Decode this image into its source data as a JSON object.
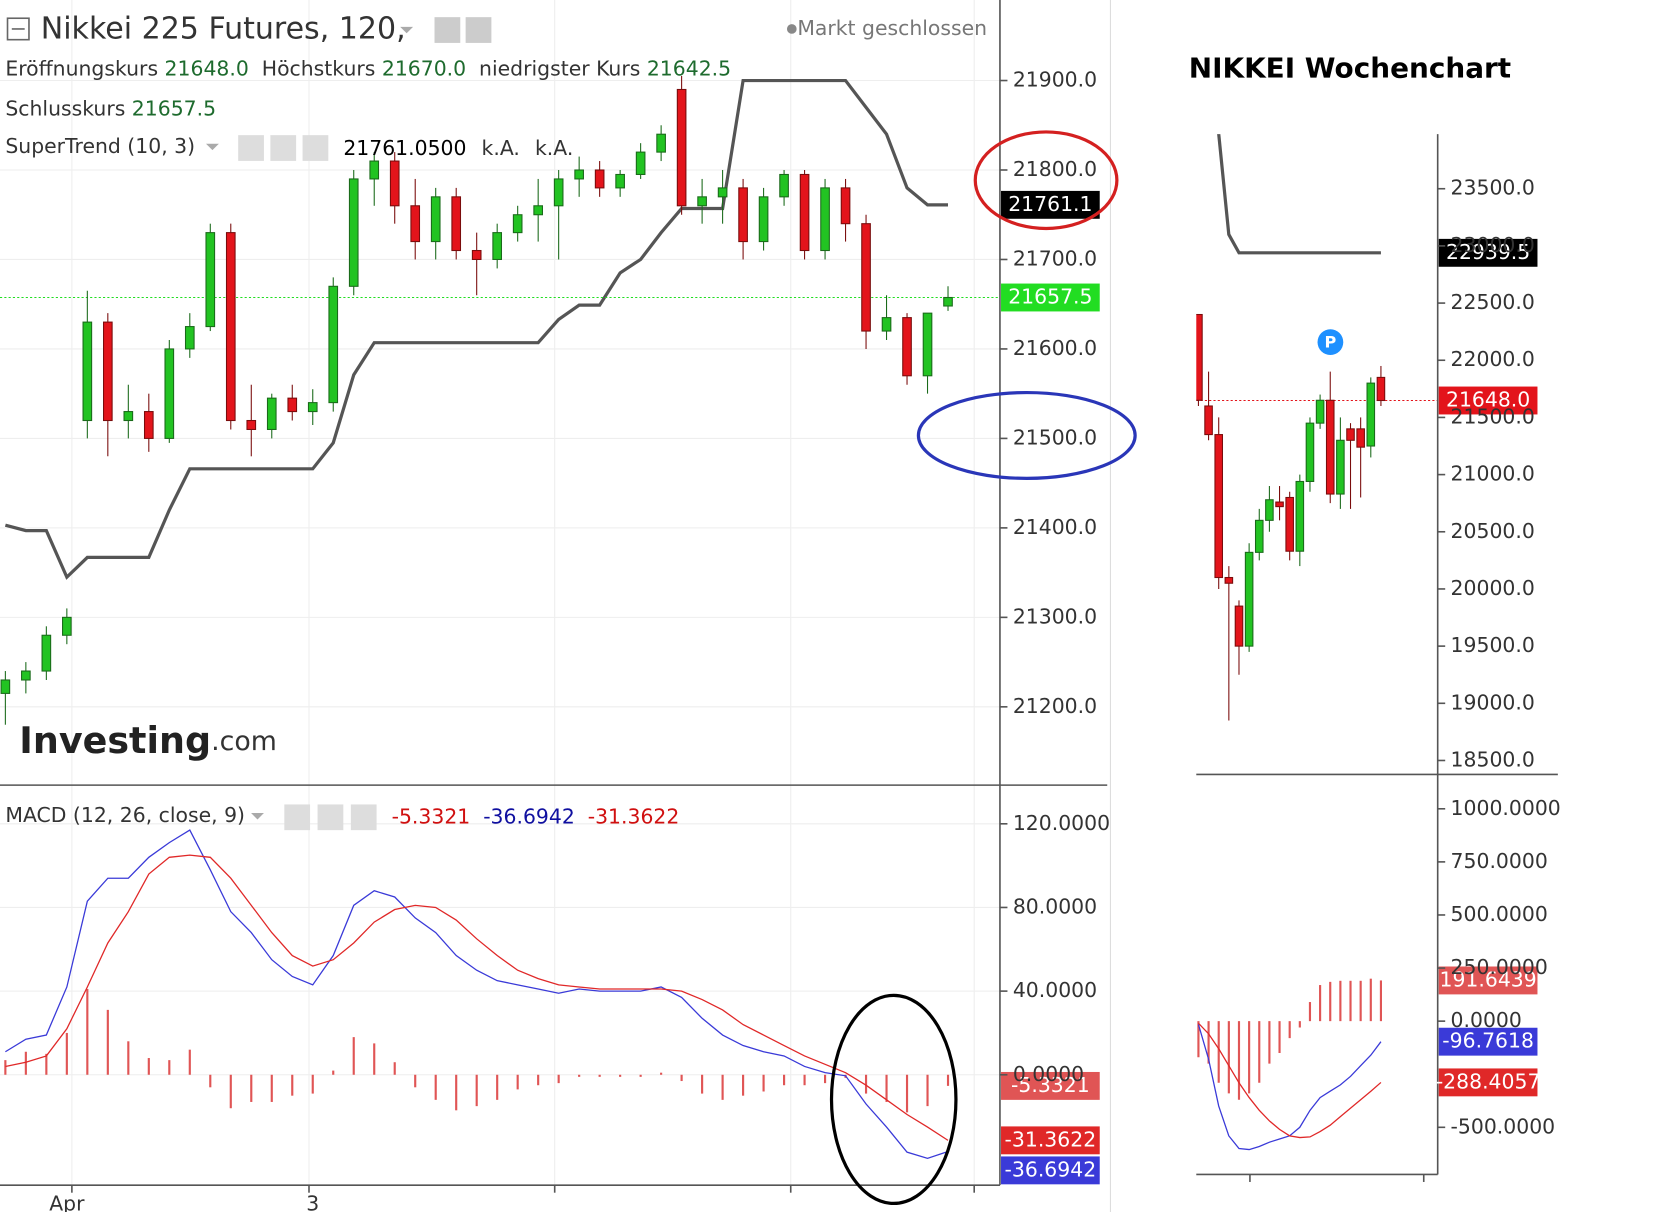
{
  "chart_data": [
    {
      "type": "candlestick",
      "title": "Nikkei 225 Futures, 120,",
      "status": "Markt geschlossen",
      "legend": [
        {
          "name": "Eröffnungskurs",
          "label": "21648.0"
        },
        {
          "name": "Höchstkurs",
          "label": "21670.0"
        },
        {
          "name": "niedrigster Kurs",
          "label": "21642.5"
        },
        {
          "name": "Schlusskurs",
          "label": "21657.5"
        }
      ],
      "categories": [
        null,
        null,
        null,
        "Apr",
        null,
        null,
        null,
        null,
        null,
        null,
        null,
        null,
        null,
        null,
        null,
        "3",
        null,
        null,
        null,
        null,
        null,
        null,
        null,
        null,
        null,
        null,
        null,
        null,
        null,
        null,
        null,
        null,
        null,
        null,
        null,
        null,
        null,
        null,
        null,
        null,
        null,
        null,
        null,
        null,
        null,
        null,
        null
      ],
      "open": [
        21215,
        21230,
        21240,
        21280,
        21520,
        21630,
        21520,
        21530,
        21500,
        21600,
        21625,
        21730,
        21520,
        21510,
        21545,
        21530,
        21540,
        21670,
        21790,
        21810,
        21760,
        21720,
        21770,
        21710,
        21700,
        21730,
        21750,
        21760,
        21790,
        21800,
        21780,
        21795,
        21820,
        21890,
        21760,
        21770,
        21780,
        21720,
        21770,
        21795,
        21710,
        21780,
        21740,
        21620,
        21635,
        21570,
        21648
      ],
      "high": [
        21240,
        21250,
        21290,
        21310,
        21665,
        21640,
        21560,
        21550,
        21610,
        21640,
        21740,
        21740,
        21560,
        21550,
        21560,
        21555,
        21680,
        21800,
        21820,
        21820,
        21790,
        21780,
        21780,
        21730,
        21740,
        21760,
        21790,
        21800,
        21815,
        21810,
        21800,
        21830,
        21850,
        21905,
        21790,
        21800,
        21790,
        21780,
        21800,
        21800,
        21790,
        21790,
        21750,
        21660,
        21640,
        21640,
        21670
      ],
      "low": [
        21180,
        21215,
        21230,
        21270,
        21500,
        21480,
        21500,
        21485,
        21495,
        21590,
        21620,
        21510,
        21480,
        21500,
        21520,
        21515,
        21530,
        21660,
        21760,
        21740,
        21700,
        21700,
        21700,
        21660,
        21690,
        21720,
        21720,
        21700,
        21770,
        21770,
        21770,
        21790,
        21810,
        21750,
        21740,
        21740,
        21700,
        21710,
        21760,
        21700,
        21700,
        21720,
        21600,
        21610,
        21560,
        21550,
        21642.5
      ],
      "close": [
        21230,
        21240,
        21280,
        21300,
        21630,
        21520,
        21530,
        21500,
        21600,
        21625,
        21730,
        21520,
        21510,
        21545,
        21530,
        21540,
        21670,
        21790,
        21810,
        21760,
        21720,
        21770,
        21710,
        21700,
        21730,
        21750,
        21760,
        21790,
        21800,
        21780,
        21795,
        21820,
        21840,
        21760,
        21770,
        21780,
        21720,
        21770,
        21795,
        21710,
        21780,
        21740,
        21620,
        21635,
        21570,
        21640,
        21657.5
      ],
      "up_color": "#22c322",
      "down_color": "#e3141b",
      "close_line_color": "#22dd22",
      "indicator": {
        "name": "SuperTrend (10, 3)",
        "color": "#555555",
        "value_label": "21761.0500",
        "axis_label": "21761.1",
        "na": [
          "k.A.",
          "k.A."
        ],
        "values": [
          21403,
          21397,
          21397,
          21345,
          21367,
          21367,
          21367,
          21367,
          21420,
          21466,
          21466,
          21466,
          21466,
          21466,
          21466,
          21466,
          21495,
          21571,
          21607,
          21607,
          21607,
          21607,
          21607,
          21607,
          21607,
          21607,
          21607,
          21633,
          21649,
          21649,
          21685,
          21700,
          21730,
          21757,
          21757,
          21757,
          21900,
          21900,
          21900,
          21900,
          21900,
          21900,
          21870,
          21840,
          21780,
          21761.05,
          21761.05
        ]
      },
      "ylim": [
        21112.5,
        21990
      ],
      "yticks": [
        {
          "value": 21200,
          "label": "21200.0"
        },
        {
          "value": 21300,
          "label": "21300.0"
        },
        {
          "value": 21400,
          "label": "21400.0"
        },
        {
          "value": 21500,
          "label": "21500.0"
        },
        {
          "value": 21600,
          "label": "21600.0"
        },
        {
          "value": 21700,
          "label": "21700.0"
        },
        {
          "value": 21800,
          "label": "21800.0"
        },
        {
          "value": 21900,
          "label": "21900.0"
        }
      ],
      "grid": true
    },
    {
      "type": "macd",
      "name": "MACD (12, 26, close, 9)",
      "series": [
        {
          "style": "histogram",
          "color": "#e05555",
          "value_label": "-5.3321",
          "values": [
            7,
            11,
            10,
            20,
            41,
            31,
            16,
            8,
            7,
            12,
            -6,
            -16,
            -13,
            -13,
            -10,
            -9,
            2,
            18,
            15,
            6,
            -6,
            -12,
            -17,
            -15,
            -12,
            -7,
            -5,
            -4,
            -1,
            -1,
            -1,
            -1,
            1,
            -3,
            -9,
            -12,
            -10,
            -8,
            -5,
            -5,
            -4,
            -1.5,
            -9,
            -13,
            -18,
            -15,
            -5.3321
          ]
        },
        {
          "style": "line",
          "color": "#3a3ad8",
          "value_label": "-36.6942",
          "values": [
            11,
            17,
            19,
            42,
            83,
            94,
            94,
            104,
            111,
            117,
            98,
            78,
            68,
            55,
            47,
            43,
            57,
            81,
            88,
            85,
            75,
            68,
            57,
            50,
            45,
            43,
            41,
            39,
            41,
            40,
            40,
            40,
            42,
            37,
            27,
            19,
            14,
            11,
            9,
            4,
            1,
            -0.5,
            -14,
            -25,
            -37,
            -40,
            -36.6942
          ]
        },
        {
          "style": "line",
          "color": "#e02828",
          "value_label": "-31.3622",
          "values": [
            4,
            6,
            9,
            22,
            42,
            63,
            78,
            96,
            104,
            105,
            104,
            94,
            81,
            68,
            57,
            52,
            55,
            63,
            73,
            79,
            81,
            80,
            74,
            65,
            57,
            50,
            46,
            43,
            42,
            41,
            41,
            41,
            41,
            40,
            36,
            31,
            24,
            19,
            14,
            9,
            5,
            1,
            -5,
            -12,
            -19,
            -25,
            -31.3622
          ]
        }
      ],
      "ylim": [
        -52.8,
        138.5
      ],
      "yticks": [
        {
          "value": 0,
          "label": "0.0000"
        },
        {
          "value": 40,
          "label": "40.0000"
        },
        {
          "value": 80,
          "label": "80.0000"
        },
        {
          "value": 120,
          "label": "120.0000"
        }
      ],
      "grid": true
    },
    {
      "type": "candlestick",
      "title": "NIKKEI Wochenchart",
      "close_label": "21648.0",
      "open": [
        22400,
        21600,
        21350,
        20100,
        19850,
        19500,
        20320,
        20600,
        20760,
        20800,
        20330,
        20940,
        21450,
        21650,
        20830,
        21400,
        21400,
        21250,
        21850
      ],
      "high": [
        22400,
        21900,
        21500,
        20200,
        19900,
        20400,
        20700,
        20900,
        20900,
        20850,
        21000,
        21500,
        21700,
        21900,
        21500,
        21450,
        21500,
        21850,
        21950
      ],
      "low": [
        21600,
        21300,
        20000,
        18850,
        19250,
        19450,
        20250,
        20500,
        20600,
        20250,
        20200,
        20850,
        21400,
        20750,
        20700,
        20700,
        20800,
        21150,
        21600
      ],
      "close": [
        21650,
        21350,
        20100,
        20050,
        19500,
        20320,
        20600,
        20780,
        20720,
        20330,
        20940,
        21450,
        21650,
        20830,
        21300,
        21300,
        21240,
        21800,
        21648
      ],
      "up_color": "#22c322",
      "down_color": "#e3141b",
      "close_line_color": "#e3141b",
      "indicator": {
        "color": "#555555",
        "axis_label": "22939.5",
        "values": [
          null,
          null,
          23980,
          23100,
          22939.5,
          22939.5,
          22939.5,
          22939.5,
          22939.5,
          22939.5,
          22939.5,
          22939.5,
          22939.5,
          22939.5,
          22939.5,
          22939.5,
          22939.5,
          22939.5,
          22939.5
        ]
      },
      "ylim": [
        18397,
        23978
      ],
      "yticks": [
        {
          "value": 18500,
          "label": "18500.0"
        },
        {
          "value": 19000,
          "label": "19000.0"
        },
        {
          "value": 19500,
          "label": "19500.0"
        },
        {
          "value": 20000,
          "label": "20000.0"
        },
        {
          "value": 20500,
          "label": "20500.0"
        },
        {
          "value": 21000,
          "label": "21000.0"
        },
        {
          "value": 21500,
          "label": "21500.0"
        },
        {
          "value": 22000,
          "label": "22000.0"
        },
        {
          "value": 22500,
          "label": "22500.0"
        },
        {
          "value": 23000,
          "label": "23000.0"
        },
        {
          "value": 23500,
          "label": "23500.0"
        }
      ],
      "grid": false
    },
    {
      "type": "macd",
      "series": [
        {
          "style": "histogram",
          "color": "#e05555",
          "value_label": "191.6439",
          "values": [
            -170,
            -200,
            -290,
            -340,
            -370,
            -340,
            -290,
            -200,
            -150,
            -80,
            -30,
            90,
            170,
            185,
            190,
            190,
            190,
            200,
            191.6439
          ]
        },
        {
          "style": "line",
          "color": "#3a3ad8",
          "value_label": "-96.7618",
          "values": [
            -15,
            -180,
            -400,
            -540,
            -600,
            -605,
            -590,
            -570,
            -555,
            -540,
            -500,
            -420,
            -360,
            -330,
            -300,
            -260,
            -210,
            -160,
            -96.7618
          ]
        },
        {
          "style": "line",
          "color": "#e02828",
          "value_label": "-288.4057",
          "values": [
            -10,
            -60,
            -130,
            -210,
            -290,
            -360,
            -420,
            -470,
            -510,
            -540,
            -548,
            -545,
            -520,
            -490,
            -450,
            -410,
            -370,
            -330,
            -288.4057
          ]
        }
      ],
      "ylim": [
        -722,
        1162
      ],
      "yticks": [
        {
          "value": -500,
          "label": "-500.0000"
        },
        {
          "value": 0,
          "label": "0.0000"
        },
        {
          "value": 250,
          "label": "250.0000"
        },
        {
          "value": 500,
          "label": "500.0000"
        },
        {
          "value": 750,
          "label": "750.0000"
        },
        {
          "value": 1000,
          "label": "1000.0000"
        }
      ],
      "grid": false
    }
  ],
  "logo": {
    "main": "Investing",
    "suffix": ".com"
  }
}
